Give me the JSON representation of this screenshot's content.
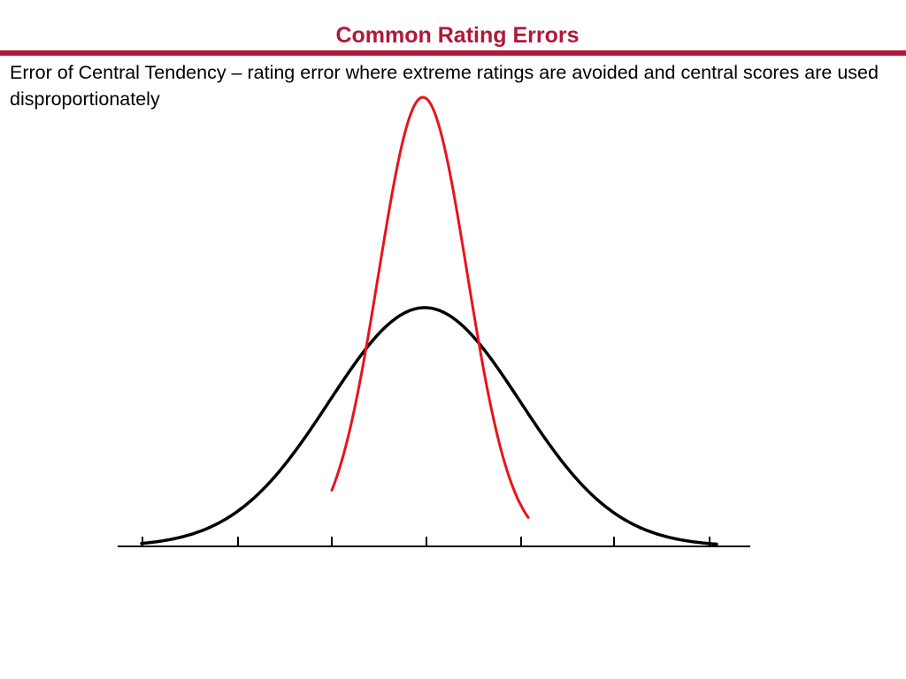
{
  "slide": {
    "title": "Common Rating Errors",
    "body": "Error of Central Tendency – rating error where extreme ratings are avoided and central scores are used disproportionately"
  },
  "diagram": {
    "curves": [
      {
        "id": "normal-distribution",
        "color": "#000000"
      },
      {
        "id": "central-tendency-distribution",
        "color": "#e8141b"
      }
    ],
    "baseline_color": "#000000"
  },
  "colors": {
    "title": "#b0183a",
    "rule": "#b0183a",
    "text": "#000000"
  }
}
